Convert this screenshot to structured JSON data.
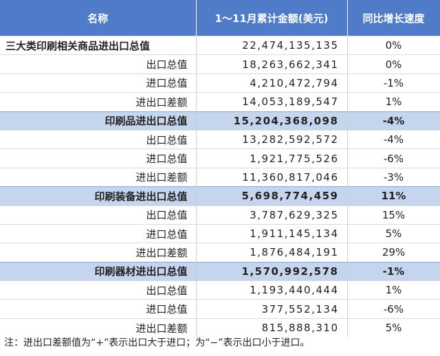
{
  "table": {
    "header": [
      "名称",
      "1～11月累计金额(美元)",
      "同比增长速度"
    ],
    "rows": [
      [
        "三大类印刷相关商品进出口总值",
        "22,474,135,135",
        "0%"
      ],
      [
        "出口总值",
        "18,263,662,341",
        "0%"
      ],
      [
        "进口总值",
        "4,210,472,794",
        "-1%"
      ],
      [
        "进出口差额",
        "14,053,189,547",
        "1%"
      ],
      [
        "印刷品进出口总值",
        "15,204,368,098",
        "-4%"
      ],
      [
        "出口总值",
        "13,282,592,572",
        "-4%"
      ],
      [
        "进口总值",
        "1,921,775,526",
        "-6%"
      ],
      [
        "进出口差额",
        "11,360,817,046",
        "-3%"
      ],
      [
        "印刷装备进出口总值",
        "5,698,774,459",
        "11%"
      ],
      [
        "出口总值",
        "3,787,629,325",
        "15%"
      ],
      [
        "进口总值",
        "1,911,145,134",
        "5%"
      ],
      [
        "进出口差额",
        "1,876,484,191",
        "29%"
      ],
      [
        "印刷器材进出口总值",
        "1,570,992,578",
        "-1%"
      ],
      [
        "出口总值",
        "1,193,440,444",
        "1%"
      ],
      [
        "进口总值",
        "377,552,134",
        "-6%"
      ],
      [
        "进出口差额",
        "815,888,310",
        "5%"
      ]
    ]
  },
  "note": "注：进出口差额值为“+”表示出口大于进口；为“−”表示出口小于进口。"
}
